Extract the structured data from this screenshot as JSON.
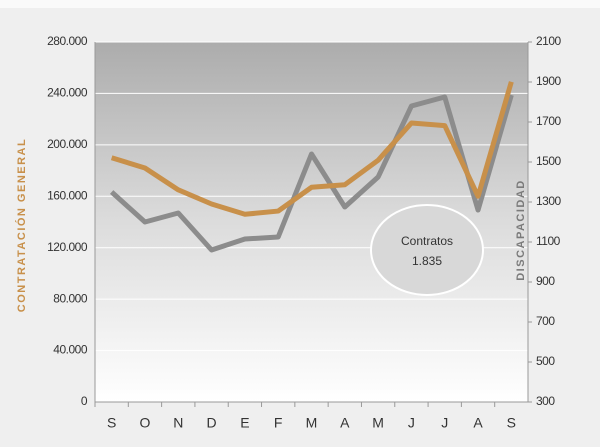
{
  "chart_data": {
    "type": "line",
    "categories": [
      "S",
      "O",
      "N",
      "D",
      "E",
      "F",
      "M",
      "A",
      "M",
      "J",
      "J",
      "A",
      "S"
    ],
    "ylabel": "CONTRATACIÓN GENERAL",
    "y2label": "DISCAPACIDAD",
    "ylim": [
      0,
      280000
    ],
    "yticks": [
      0,
      {
        "value": 40000,
        "label": "40.000"
      },
      {
        "value": 80000,
        "label": "80.000"
      },
      {
        "value": 120000,
        "label": "120.000"
      },
      {
        "value": 160000,
        "label": "160.000"
      },
      {
        "value": 200000,
        "label": "200.000"
      },
      {
        "value": 240000,
        "label": "240.000"
      },
      {
        "value": 280000,
        "label": "280.000"
      }
    ],
    "y2lim": [
      300,
      2100
    ],
    "y2ticks": [
      300,
      500,
      700,
      900,
      1100,
      1300,
      1500,
      1700,
      1900,
      2100
    ],
    "grid": true,
    "series": [
      {
        "name": "Contratación general",
        "color": "#c8904a",
        "values": [
          190000,
          182000,
          165000,
          154000,
          146000,
          148500,
          167000,
          169000,
          188000,
          217000,
          215000,
          160000,
          249000
        ]
      },
      {
        "name": "Discapacidad",
        "color": "#8c8c8c",
        "axis": "y2",
        "values": [
          1350,
          1200,
          1245,
          1060,
          1115,
          1125,
          1540,
          1275,
          1425,
          1780,
          1825,
          1260,
          1835
        ]
      }
    ],
    "annotation": {
      "title": "Contratos",
      "value": 1835,
      "label": "1.835"
    }
  }
}
